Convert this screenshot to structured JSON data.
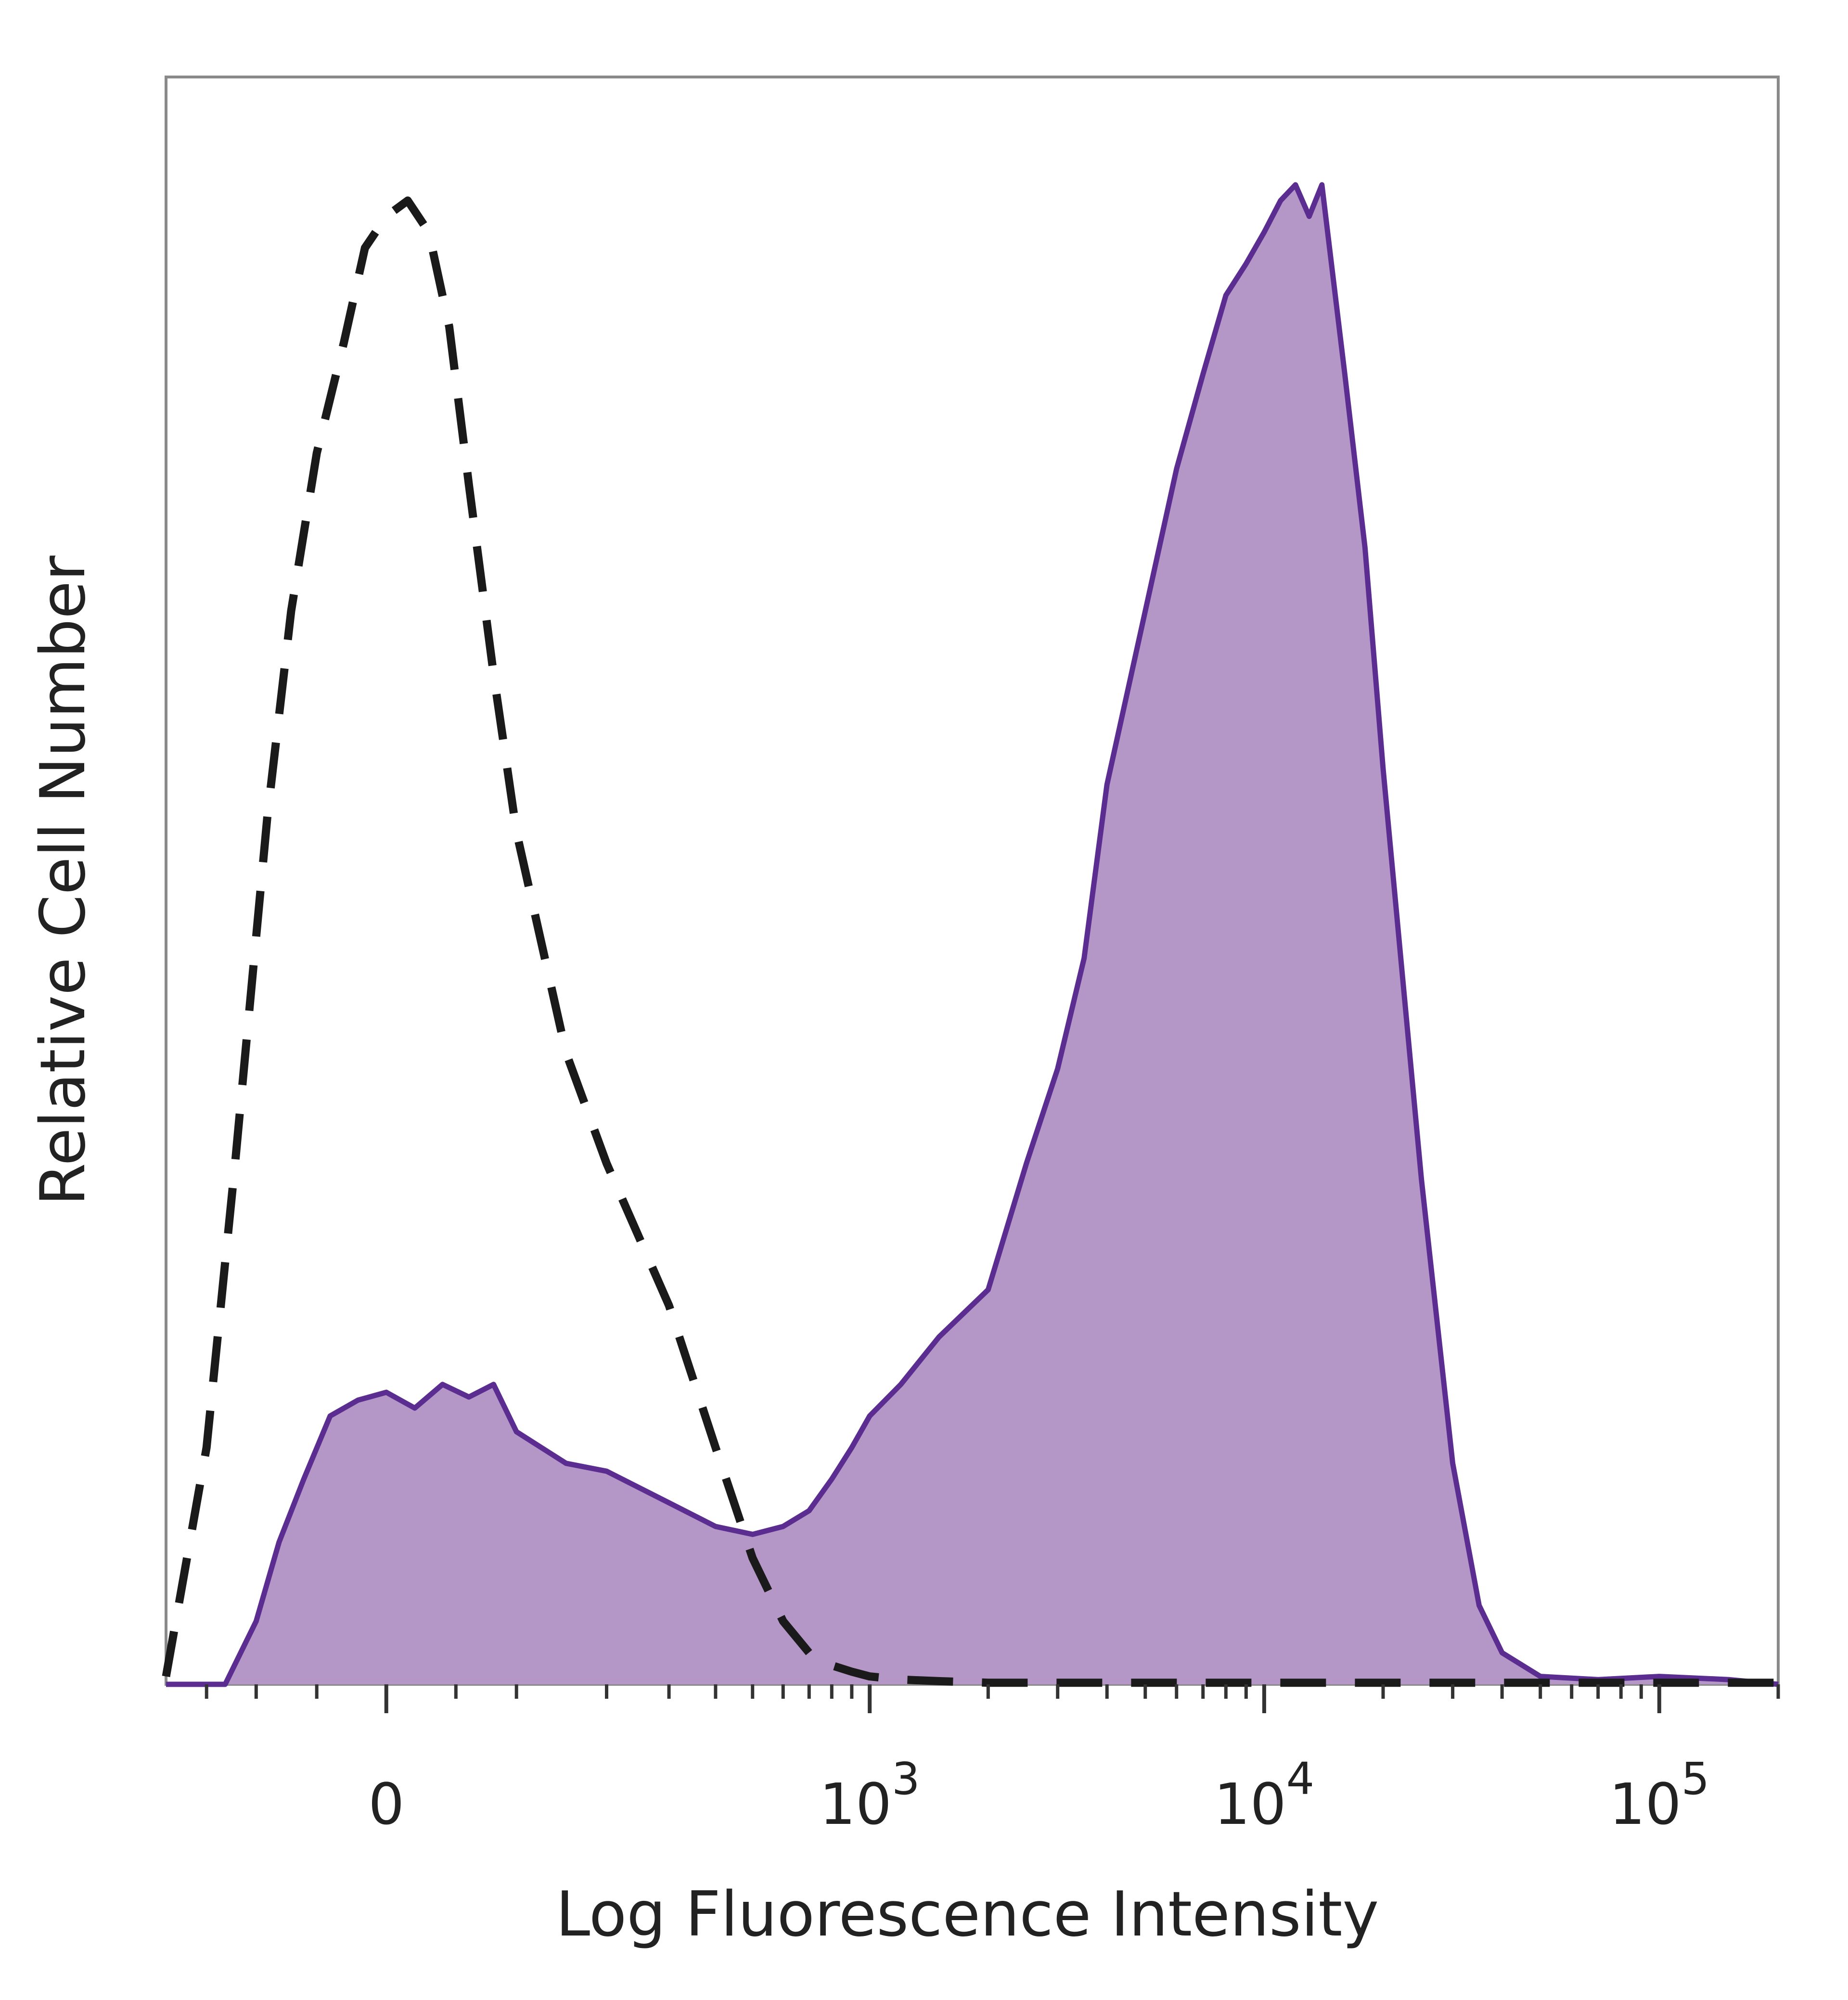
{
  "chart_data": {
    "type": "area",
    "title": "",
    "xlabel": "Log Fluorescence Intensity",
    "ylabel": "Relative Cell Number",
    "x_scale": "biexponential",
    "xlim": [
      -200,
      200000
    ],
    "ylim": [
      0,
      100
    ],
    "grid": false,
    "x_ticks": [
      {
        "value": 0,
        "base": "0",
        "exp": ""
      },
      {
        "value": 1000,
        "base": "10",
        "exp": "3"
      },
      {
        "value": 10000,
        "base": "10",
        "exp": "4"
      },
      {
        "value": 100000,
        "base": "10",
        "exp": "5"
      }
    ],
    "series": [
      {
        "style": "dashed-outline",
        "color": "#1a1a1a",
        "x": [
          -200,
          -150,
          -120,
          -90,
          -70,
          -50,
          -30,
          -15,
          0,
          15,
          30,
          45,
          60,
          80,
          100,
          150,
          200,
          300,
          400,
          500,
          600,
          700,
          800,
          900,
          1000,
          1200,
          1500,
          2000,
          3000,
          5000,
          10000,
          20000,
          50000,
          100000,
          200000
        ],
        "values": [
          0.5,
          15,
          33,
          55,
          68,
          78,
          85,
          91,
          93,
          94,
          92,
          86,
          76,
          64,
          54,
          40,
          33,
          24,
          15,
          8,
          4,
          2,
          1.2,
          0.8,
          0.5,
          0.3,
          0.2,
          0.1,
          0.1,
          0.1,
          0.1,
          0.1,
          0.1,
          0.1,
          0.1
        ]
      },
      {
        "style": "filled",
        "color": "#5b2d91",
        "fill": "#b497c6",
        "x": [
          -200,
          -130,
          -100,
          -80,
          -60,
          -40,
          -20,
          0,
          20,
          40,
          60,
          80,
          100,
          150,
          200,
          300,
          400,
          500,
          600,
          700,
          800,
          900,
          1000,
          1200,
          1500,
          2000,
          2500,
          3000,
          3500,
          4000,
          5000,
          6000,
          7000,
          8000,
          9000,
          10000,
          11000,
          12000,
          13000,
          14000,
          16000,
          18000,
          20000,
          25000,
          30000,
          35000,
          40000,
          50000,
          70000,
          100000,
          150000,
          200000
        ],
        "values": [
          0,
          0,
          4,
          9,
          13,
          17,
          18,
          18.5,
          17.5,
          19,
          18.2,
          19,
          16,
          14,
          13.5,
          11.5,
          10,
          9.5,
          10,
          11,
          13,
          15,
          17,
          19,
          22,
          25,
          33,
          39,
          46,
          57,
          68,
          77,
          83,
          88,
          90,
          92,
          94,
          95,
          93,
          95,
          83,
          72,
          58,
          32,
          14,
          5,
          2,
          0.5,
          0.3,
          0.5,
          0.3,
          0
        ]
      }
    ]
  }
}
